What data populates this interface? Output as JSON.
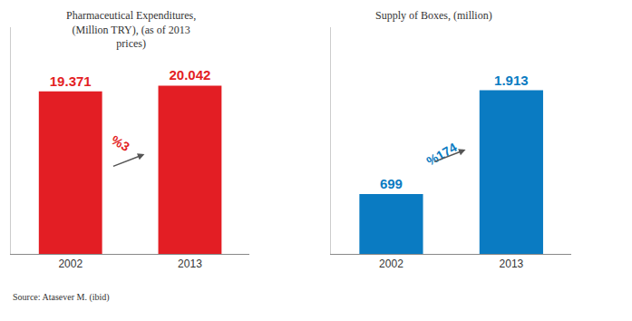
{
  "chart_data": [
    {
      "type": "bar",
      "title": "Pharmaceutical Expenditures,\n(Million TRY), (as of 2013\nprices)",
      "categories": [
        "2002",
        "2013"
      ],
      "values": [
        19371,
        20042
      ],
      "value_labels": [
        "19.371",
        "20.042"
      ],
      "data_labels": true,
      "color": "#e31e24",
      "ylim": [
        0,
        27000
      ],
      "tick_labels": "x",
      "grid": false,
      "annotations": [
        "%3"
      ]
    },
    {
      "type": "bar",
      "title": "Supply of Boxes, (million)",
      "categories": [
        "2002",
        "2013"
      ],
      "values": [
        699,
        1913
      ],
      "value_labels": [
        "699",
        "1.913"
      ],
      "data_labels": true,
      "color": "#0a7bc2",
      "ylim": [
        0,
        2650
      ],
      "tick_labels": "x",
      "grid": false,
      "annotations": [
        "%174"
      ]
    }
  ],
  "source": "Source: Atasever M. (ibid)"
}
